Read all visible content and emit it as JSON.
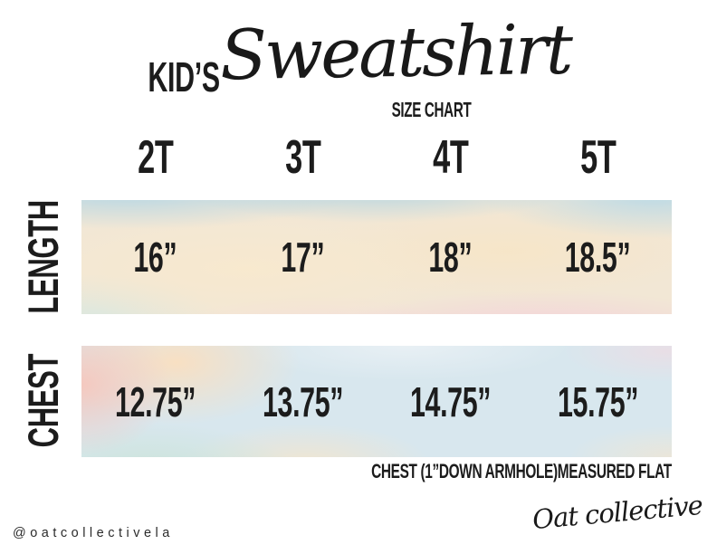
{
  "title": {
    "kicker": "KID’S",
    "name": "Sweatshirt",
    "subtitle": "SIZE CHART"
  },
  "chart_data": {
    "type": "table",
    "title": "KID’S Sweatshirt SIZE CHART",
    "columns": [
      "2T",
      "3T",
      "4T",
      "5T"
    ],
    "series": [
      {
        "name": "LENGTH",
        "display": [
          "16”",
          "17”",
          "18”",
          "18.5”"
        ],
        "values_inches": [
          16,
          17,
          18,
          18.5
        ]
      },
      {
        "name": "CHEST",
        "display": [
          "12.75”",
          "13.75”",
          "14.75”",
          "15.75”"
        ],
        "values_inches": [
          12.75,
          13.75,
          14.75,
          15.75
        ]
      }
    ],
    "note": "CHEST (1”DOWN ARMHOLE)MEASURED FLAT"
  },
  "footer": {
    "handle": "@oatcollectivela",
    "brand_signature": "Oat collective"
  },
  "colors": {
    "text": "#1c1c1c",
    "background": "#ffffff",
    "wash_blue": "#b5d8e7",
    "wash_peach": "#f7e3c6",
    "wash_pink": "#f4d0de",
    "wash_mint": "#cde4da",
    "wash_cream": "#f2e7d5"
  }
}
